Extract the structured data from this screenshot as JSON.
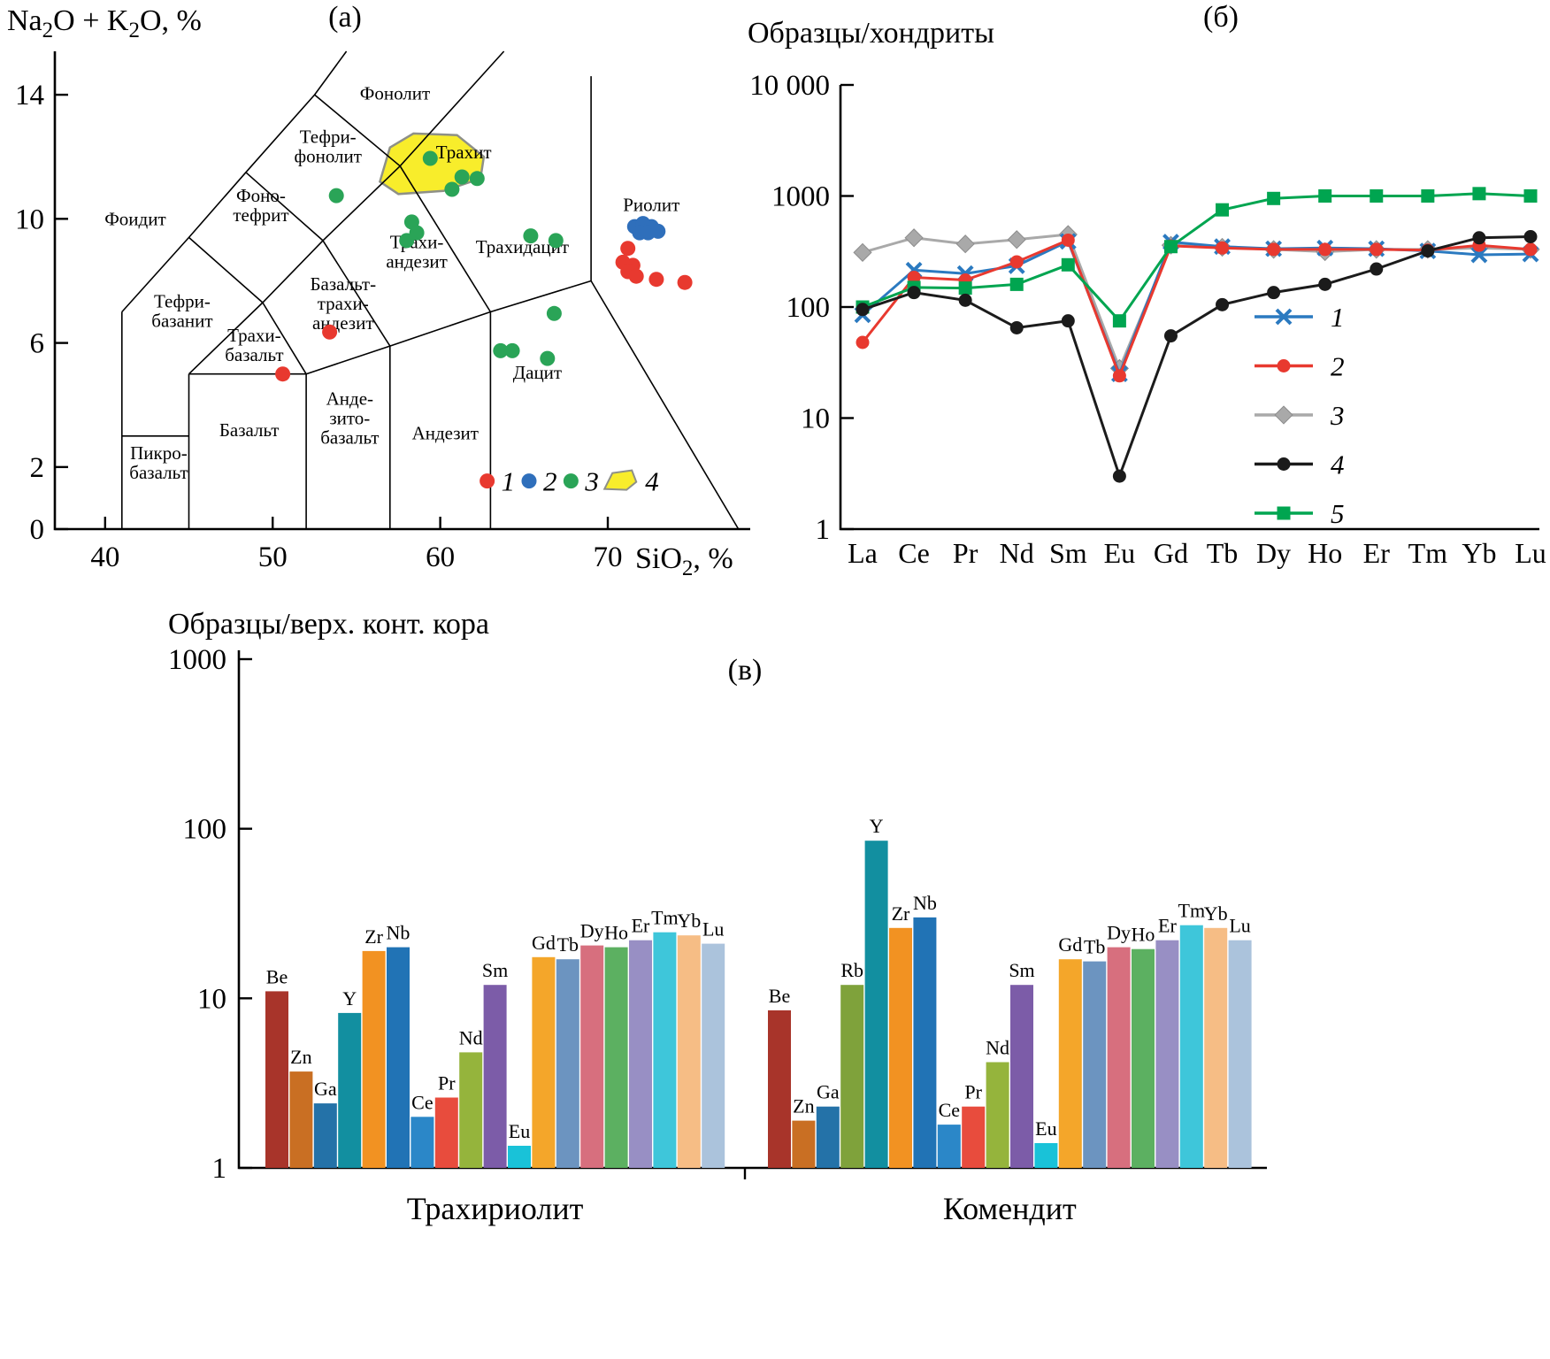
{
  "panels": {
    "a": {
      "label": "(а)",
      "ylabel": {
        "t1": "Na",
        "s1": "2",
        "t2": "O + K",
        "s2": "2",
        "t3": "O, %"
      },
      "xlabel": {
        "t1": "SiO",
        "s1": "2",
        "t2": ", %"
      }
    },
    "b": {
      "label": "(б)",
      "title": "Образцы/хондриты"
    },
    "c": {
      "label": "(в)",
      "title": "Образцы/верх. конт. кора"
    }
  },
  "chart_data": [
    {
      "id": "tas-diagram",
      "type": "scatter",
      "panel_label": "(а)",
      "xlabel": "SiO2, %",
      "ylabel": "Na2O + K2O, %",
      "xlim": [
        37,
        78.5
      ],
      "ylim": [
        0,
        15.4
      ],
      "xticks": [
        "40",
        "50",
        "60",
        "70"
      ],
      "xtick_values": [
        40,
        50,
        60,
        70
      ],
      "yticks": [
        "0",
        "2",
        "6",
        "10",
        "14"
      ],
      "ytick_values": [
        0,
        2,
        6,
        10,
        14
      ],
      "field_boundaries": [
        [
          [
            41,
            0
          ],
          [
            41,
            7
          ]
        ],
        [
          [
            45,
            0
          ],
          [
            45,
            5
          ]
        ],
        [
          [
            41,
            3
          ],
          [
            45,
            3
          ]
        ],
        [
          [
            45,
            5
          ],
          [
            52,
            5
          ]
        ],
        [
          [
            52,
            0
          ],
          [
            52,
            5
          ]
        ],
        [
          [
            57,
            0
          ],
          [
            57,
            5.9
          ]
        ],
        [
          [
            63,
            0
          ],
          [
            63,
            7
          ]
        ],
        [
          [
            45,
            5
          ],
          [
            49.4,
            7.3
          ],
          [
            53,
            9.3
          ],
          [
            57.6,
            11.7
          ]
        ],
        [
          [
            49.4,
            7.3
          ],
          [
            52,
            5
          ]
        ],
        [
          [
            53,
            9.3
          ],
          [
            57,
            5.9
          ]
        ],
        [
          [
            57.6,
            11.7
          ],
          [
            63,
            7
          ]
        ],
        [
          [
            52,
            5
          ],
          [
            57,
            5.9
          ],
          [
            63,
            7
          ],
          [
            69,
            8
          ]
        ],
        [
          [
            69,
            8
          ],
          [
            69,
            14.6
          ]
        ],
        [
          [
            69,
            8
          ],
          [
            77.8,
            0
          ]
        ],
        [
          [
            41,
            7
          ],
          [
            45,
            9.4
          ],
          [
            48.4,
            11.5
          ],
          [
            52.5,
            14
          ],
          [
            54.4,
            15.4
          ]
        ],
        [
          [
            45,
            9.4
          ],
          [
            49.4,
            7.3
          ]
        ],
        [
          [
            48.4,
            11.5
          ],
          [
            53,
            9.3
          ]
        ],
        [
          [
            52.5,
            14
          ],
          [
            57.6,
            11.7
          ],
          [
            63.8,
            15.4
          ]
        ]
      ],
      "field_labels": [
        {
          "text": "Фоидит",
          "x": 41.8,
          "y": 9.8
        },
        {
          "text": "Фонолит",
          "x": 57.3,
          "y": 13.85
        },
        {
          "text": "Тефри-\nфонолит",
          "x": 53.3,
          "y": 12.45
        },
        {
          "text": "Фоно-\nтефрит",
          "x": 49.3,
          "y": 10.55
        },
        {
          "text": "Тефри-\nбазанит",
          "x": 44.6,
          "y": 7.15
        },
        {
          "text": "Трахи-\nбазальт",
          "x": 48.9,
          "y": 6.05
        },
        {
          "text": "Базальт-\nтрахи-\nандезит",
          "x": 54.2,
          "y": 7.7
        },
        {
          "text": "Трахит",
          "x": 61.4,
          "y": 11.95
        },
        {
          "text": "Трахи-\nандезит",
          "x": 58.6,
          "y": 9.05
        },
        {
          "text": "Трахидацит",
          "x": 64.9,
          "y": 8.9
        },
        {
          "text": "Риолит",
          "x": 72.6,
          "y": 10.25
        },
        {
          "text": "Дацит",
          "x": 65.8,
          "y": 4.85
        },
        {
          "text": "Базальт",
          "x": 48.6,
          "y": 3.0
        },
        {
          "text": "Анде-\nзито-\nбазальт",
          "x": 54.6,
          "y": 4.0
        },
        {
          "text": "Андезит",
          "x": 60.3,
          "y": 2.9
        },
        {
          "text": "Пикро-\nбазальт",
          "x": 43.2,
          "y": 2.25
        }
      ],
      "highlight_field": {
        "label": "4",
        "color": "#f8ed2b",
        "stroke": "#8e9087",
        "vertices": [
          [
            56.4,
            11.2
          ],
          [
            57.0,
            12.3
          ],
          [
            58.4,
            12.75
          ],
          [
            61.0,
            12.7
          ],
          [
            62.6,
            12.0
          ],
          [
            62.4,
            11.3
          ],
          [
            60.2,
            10.9
          ],
          [
            57.5,
            10.8
          ]
        ]
      },
      "series": [
        {
          "name": "1",
          "color": "#e8392f",
          "points": [
            [
              50.6,
              5.0
            ],
            [
              53.4,
              6.35
            ],
            [
              71.2,
              9.05
            ],
            [
              70.9,
              8.6
            ],
            [
              71.5,
              8.5
            ],
            [
              71.2,
              8.3
            ],
            [
              71.7,
              8.15
            ],
            [
              72.9,
              8.05
            ],
            [
              74.6,
              7.95
            ]
          ]
        },
        {
          "name": "2",
          "color": "#2f6fbb",
          "points": [
            [
              71.6,
              9.75
            ],
            [
              72.1,
              9.85
            ],
            [
              72.6,
              9.75
            ],
            [
              71.9,
              9.55
            ],
            [
              72.4,
              9.55
            ],
            [
              73.0,
              9.6
            ]
          ]
        },
        {
          "name": "3",
          "color": "#2aa457",
          "points": [
            [
              53.8,
              10.75
            ],
            [
              59.4,
              11.95
            ],
            [
              61.3,
              11.35
            ],
            [
              62.2,
              11.3
            ],
            [
              60.7,
              10.95
            ],
            [
              58.3,
              9.9
            ],
            [
              58.6,
              9.55
            ],
            [
              58.0,
              9.3
            ],
            [
              65.4,
              9.45
            ],
            [
              66.9,
              9.3
            ],
            [
              66.8,
              6.95
            ],
            [
              63.6,
              5.75
            ],
            [
              64.3,
              5.75
            ],
            [
              66.4,
              5.5
            ]
          ]
        }
      ],
      "legend": [
        {
          "label": "1",
          "marker": "dot",
          "color": "#e8392f"
        },
        {
          "label": "2",
          "marker": "dot",
          "color": "#2f6fbb"
        },
        {
          "label": "3",
          "marker": "dot",
          "color": "#2aa457"
        },
        {
          "label": "4",
          "marker": "field",
          "color": "#f8ed2b"
        }
      ]
    },
    {
      "id": "ree-spider",
      "type": "line",
      "panel_label": "(б)",
      "title": "Образцы/хондриты",
      "yscale": "log",
      "ylim": [
        1,
        10000
      ],
      "ytick_values": [
        1,
        10,
        100,
        1000,
        10000
      ],
      "ytick_labels": [
        "1",
        "10",
        "100",
        "1000",
        "10 000"
      ],
      "categories": [
        "La",
        "Ce",
        "Pr",
        "Nd",
        "Sm",
        "Eu",
        "Gd",
        "Tb",
        "Dy",
        "Ho",
        "Er",
        "Tm",
        "Yb",
        "Lu"
      ],
      "series": [
        {
          "name": "1",
          "color": "#2b7ac0",
          "marker": "x",
          "values": [
            85,
            215,
            200,
            235,
            390,
            25,
            385,
            350,
            335,
            340,
            335,
            320,
            295,
            300
          ]
        },
        {
          "name": "2",
          "color": "#e8392f",
          "marker": "circle",
          "values": [
            48,
            185,
            175,
            255,
            400,
            24,
            355,
            340,
            330,
            330,
            330,
            325,
            360,
            330
          ]
        },
        {
          "name": "3",
          "color": "#a9a9a9",
          "marker": "diamond",
          "values": [
            310,
            420,
            370,
            405,
            450,
            28,
            360,
            345,
            330,
            315,
            330,
            330,
            340,
            330
          ]
        },
        {
          "name": "4",
          "color": "#1b1b1b",
          "marker": "circle",
          "values": [
            95,
            135,
            115,
            65,
            75,
            3,
            55,
            105,
            135,
            160,
            220,
            320,
            420,
            430
          ]
        },
        {
          "name": "5",
          "color": "#00a550",
          "marker": "square",
          "values": [
            100,
            150,
            148,
            160,
            240,
            75,
            350,
            750,
            950,
            1000,
            1000,
            1000,
            1050,
            1000
          ]
        }
      ],
      "legend_position": "right-middle"
    },
    {
      "id": "upper-crust-bars",
      "type": "bar",
      "panel_label": "(в)",
      "title": "Образцы/верх. конт. кора",
      "yscale": "log",
      "ylim": [
        1,
        1000
      ],
      "ytick_values": [
        1,
        10,
        100,
        1000
      ],
      "ytick_labels": [
        "1",
        "10",
        "100",
        "1000"
      ],
      "groups": [
        {
          "name": "Трахириолит",
          "bars": [
            {
              "element": "Be",
              "value": 11,
              "color": "#a8342a"
            },
            {
              "element": "Zn",
              "value": 3.7,
              "color": "#c96f23"
            },
            {
              "element": "Ga",
              "value": 2.4,
              "color": "#2472a8"
            },
            {
              "element": "Y",
              "value": 8.2,
              "color": "#128fa0"
            },
            {
              "element": "Zr",
              "value": 19,
              "color": "#f29222"
            },
            {
              "element": "Nb",
              "value": 20,
              "color": "#2173b5"
            },
            {
              "element": "Ce",
              "value": 2.0,
              "color": "#2b87c8"
            },
            {
              "element": "Pr",
              "value": 2.6,
              "color": "#e84c3d"
            },
            {
              "element": "Nd",
              "value": 4.8,
              "color": "#95b43c"
            },
            {
              "element": "Sm",
              "value": 12,
              "color": "#7c5ca8"
            },
            {
              "element": "Eu",
              "value": 1.35,
              "color": "#19c2d8"
            },
            {
              "element": "Gd",
              "value": 17.5,
              "color": "#f4a62a"
            },
            {
              "element": "Tb",
              "value": 17,
              "color": "#6c94c0"
            },
            {
              "element": "Dy",
              "value": 20.5,
              "color": "#d76f7e"
            },
            {
              "element": "Ho",
              "value": 20,
              "color": "#5cb061"
            },
            {
              "element": "Er",
              "value": 22,
              "color": "#988fc4"
            },
            {
              "element": "Tm",
              "value": 24.5,
              "color": "#3ec6da"
            },
            {
              "element": "Yb",
              "value": 23.5,
              "color": "#f6bd85"
            },
            {
              "element": "Lu",
              "value": 21,
              "color": "#abc3dc"
            }
          ]
        },
        {
          "name": "Комендит",
          "bars": [
            {
              "element": "Be",
              "value": 8.5,
              "color": "#a8342a"
            },
            {
              "element": "Zn",
              "value": 1.9,
              "color": "#c96f23"
            },
            {
              "element": "Ga",
              "value": 2.3,
              "color": "#2472a8"
            },
            {
              "element": "Rb",
              "value": 12,
              "color": "#7fa23b"
            },
            {
              "element": "Y",
              "value": 85,
              "color": "#128fa0"
            },
            {
              "element": "Zr",
              "value": 26,
              "color": "#f29222"
            },
            {
              "element": "Nb",
              "value": 30,
              "color": "#2173b5"
            },
            {
              "element": "Ce",
              "value": 1.8,
              "color": "#2b87c8"
            },
            {
              "element": "Pr",
              "value": 2.3,
              "color": "#e84c3d"
            },
            {
              "element": "Nd",
              "value": 4.2,
              "color": "#95b43c"
            },
            {
              "element": "Sm",
              "value": 12,
              "color": "#7c5ca8"
            },
            {
              "element": "Eu",
              "value": 1.4,
              "color": "#19c2d8"
            },
            {
              "element": "Gd",
              "value": 17,
              "color": "#f4a62a"
            },
            {
              "element": "Tb",
              "value": 16.5,
              "color": "#6c94c0"
            },
            {
              "element": "Dy",
              "value": 20,
              "color": "#d76f7e"
            },
            {
              "element": "Ho",
              "value": 19.5,
              "color": "#5cb061"
            },
            {
              "element": "Er",
              "value": 22,
              "color": "#988fc4"
            },
            {
              "element": "Tm",
              "value": 27,
              "color": "#3ec6da"
            },
            {
              "element": "Yb",
              "value": 26,
              "color": "#f6bd85"
            },
            {
              "element": "Lu",
              "value": 22,
              "color": "#abc3dc"
            }
          ]
        }
      ]
    }
  ]
}
